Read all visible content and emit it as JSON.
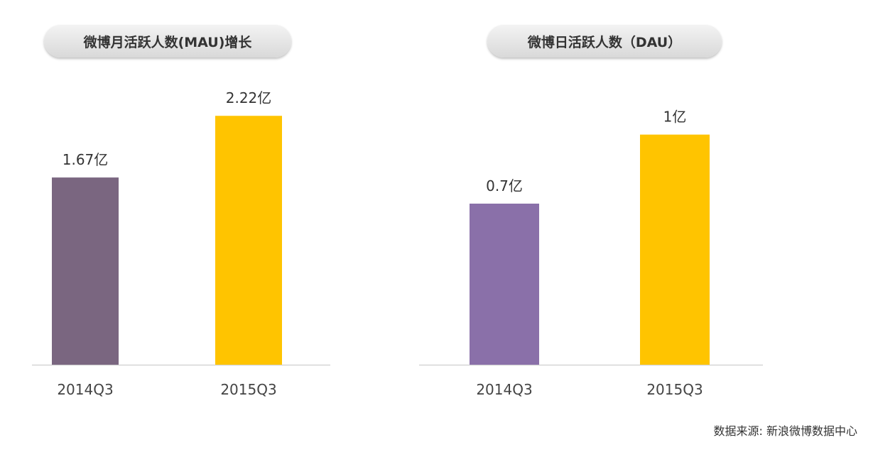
{
  "source_label": "数据来源: 新浪微博数据中心",
  "chart_data": [
    {
      "type": "bar",
      "title": "微博月活跃人数(MAU)增长",
      "categories": [
        "2014Q3",
        "2015Q3"
      ],
      "values": [
        1.67,
        2.22
      ],
      "value_labels": [
        "1.67亿",
        "2.22亿"
      ],
      "unit": "亿",
      "colors": [
        "#7a6680",
        "#ffc400"
      ],
      "ylim": [
        0,
        2.5
      ],
      "grid": false,
      "legend": "none"
    },
    {
      "type": "bar",
      "title": "微博日活跃人数（DAU）",
      "categories": [
        "2014Q3",
        "2015Q3"
      ],
      "values": [
        0.7,
        1.0
      ],
      "value_labels": [
        "0.7亿",
        "1亿"
      ],
      "unit": "亿",
      "colors": [
        "#8a70a9",
        "#ffc400"
      ],
      "ylim": [
        0,
        1.11
      ],
      "grid": false,
      "legend": "none"
    }
  ]
}
